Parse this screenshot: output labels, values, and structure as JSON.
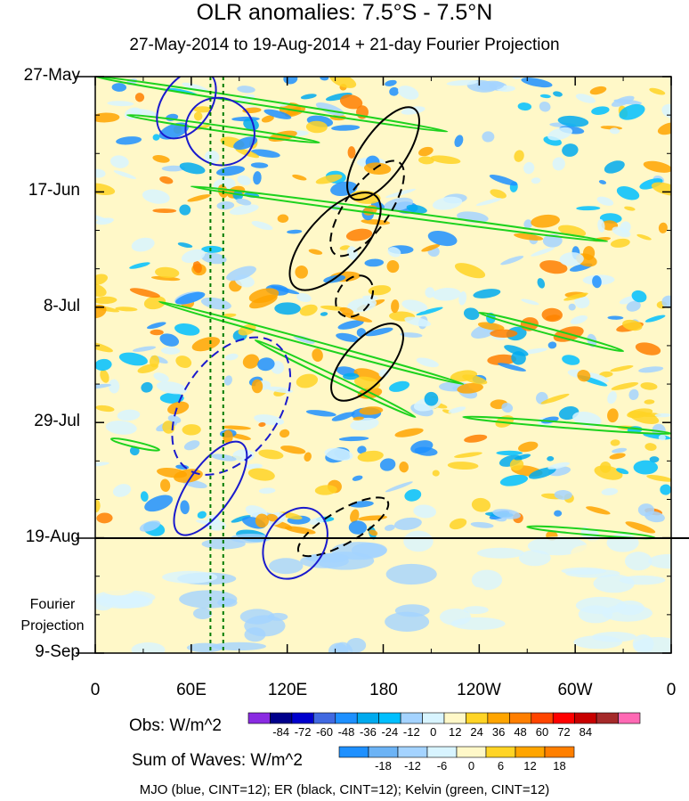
{
  "chart_data": {
    "type": "heatmap",
    "title": "OLR anomalies: 7.5°S - 7.5°N",
    "subtitle": "27-May-2014 to 19-Aug-2014 + 21-day Fourier Projection",
    "ylabel_dates": [
      "27-May",
      "17-Jun",
      "8-Jul",
      "29-Jul",
      "19-Aug",
      "9-Sep"
    ],
    "projection_label": [
      "Fourier",
      "Projection"
    ],
    "xticks": [
      "0",
      "60E",
      "120E",
      "180",
      "120W",
      "60W",
      "0"
    ],
    "xlim_deg": [
      0,
      360
    ],
    "ylim_days": [
      0,
      105
    ],
    "obs_end_day": 84,
    "colorbar_obs": {
      "label": "Obs: W/m^2",
      "ticks": [
        "-84",
        "-72",
        "-60",
        "-48",
        "-36",
        "-24",
        "-12",
        "0",
        "12",
        "24",
        "36",
        "48",
        "60",
        "72",
        "84"
      ],
      "colors": [
        "#8a2be2",
        "#00008b",
        "#0000cd",
        "#4169e1",
        "#1e90ff",
        "#00aaee",
        "#00bfff",
        "#a4d3ff",
        "#d8f4ff",
        "#fff8c8",
        "#ffd426",
        "#ffa500",
        "#ff7f00",
        "#ff4500",
        "#ff0000",
        "#c80000",
        "#a52a2a",
        "#ff69b4"
      ]
    },
    "colorbar_waves": {
      "label": "Sum of Waves: W/m^2",
      "ticks": [
        "-18",
        "-12",
        "-6",
        "0",
        "6",
        "12",
        "18"
      ],
      "colors": [
        "#1e90ff",
        "#6cb3f5",
        "#a4d3ff",
        "#d8f4ff",
        "#fff8c8",
        "#ffd426",
        "#ffa500",
        "#ff7f00"
      ]
    },
    "wave_note": "MJO (blue, CINT=12); ER (black, CINT=12); Kelvin (green, CINT=12)",
    "series_colors": {
      "mjo": "#1a1acd",
      "er": "#000000",
      "kelvin": "#1ed21e",
      "ref_lines": "#007a00"
    },
    "reference_longitudes": [
      72,
      80
    ],
    "mjo": [
      {
        "lon_center": 57,
        "day_center": 5,
        "lon_radius": 15,
        "day_radius": 7,
        "sign": 1
      },
      {
        "lon_center": 78,
        "day_center": 10,
        "lon_radius": 22,
        "day_radius": 6,
        "sign": 1
      },
      {
        "lon_center": 85,
        "day_center": 60,
        "lon_radius": 30,
        "day_radius": 14,
        "sign": -1
      },
      {
        "lon_center": 72,
        "day_center": 75,
        "lon_radius": 14,
        "day_radius": 10,
        "sign": 1
      },
      {
        "lon_center": 125,
        "day_center": 85,
        "lon_radius": 18,
        "day_radius": 7,
        "sign": 1
      }
    ],
    "er": [
      {
        "lon_center": 150,
        "day_center": 30,
        "lon_radius": 38,
        "day_radius": 5,
        "angle": -48,
        "sign": 1
      },
      {
        "lon_center": 170,
        "day_center": 24,
        "lon_radius": 35,
        "day_radius": 4,
        "angle": -55,
        "sign": -1
      },
      {
        "lon_center": 180,
        "day_center": 14,
        "lon_radius": 34,
        "day_radius": 4,
        "angle": -55,
        "sign": 1
      },
      {
        "lon_center": 162,
        "day_center": 40,
        "lon_radius": 14,
        "day_radius": 3,
        "angle": -55,
        "sign": -1
      },
      {
        "lon_center": 170,
        "day_center": 52,
        "lon_radius": 30,
        "day_radius": 4,
        "angle": -48,
        "sign": 1
      },
      {
        "lon_center": 155,
        "day_center": 82,
        "lon_radius": 32,
        "day_radius": 3,
        "angle": -30,
        "sign": -1
      }
    ],
    "kelvin": [
      {
        "lon_start": 0,
        "day_start": 0,
        "lon_end": 220,
        "day_end": 10
      },
      {
        "lon_start": 20,
        "day_start": 7,
        "lon_end": 140,
        "day_end": 12
      },
      {
        "lon_start": 60,
        "day_start": 20,
        "lon_end": 320,
        "day_end": 30
      },
      {
        "lon_start": 40,
        "day_start": 41,
        "lon_end": 230,
        "day_end": 56
      },
      {
        "lon_start": 100,
        "day_start": 48,
        "lon_end": 200,
        "day_end": 62
      },
      {
        "lon_start": 240,
        "day_start": 43,
        "lon_end": 330,
        "day_end": 50
      },
      {
        "lon_start": 230,
        "day_start": 62,
        "lon_end": 360,
        "day_end": 65
      },
      {
        "lon_start": 10,
        "day_start": 66,
        "lon_end": 40,
        "day_end": 68
      },
      {
        "lon_start": 270,
        "day_start": 82,
        "lon_end": 350,
        "day_end": 84
      }
    ]
  }
}
